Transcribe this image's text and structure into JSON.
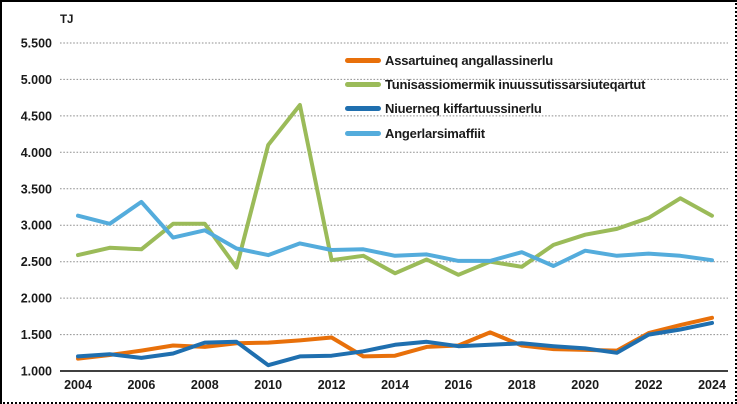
{
  "unit_label": "TJ",
  "chart_data": {
    "type": "line",
    "title": "",
    "ylabel": "TJ",
    "xlabel": "",
    "ylim": [
      1000,
      5500
    ],
    "ytick_step": 500,
    "ytick_labels": [
      "1.000",
      "1.500",
      "2.000",
      "2.500",
      "3.000",
      "3.500",
      "4.000",
      "4.500",
      "5.000",
      "5.500"
    ],
    "x": [
      2004,
      2005,
      2006,
      2007,
      2008,
      2009,
      2010,
      2011,
      2012,
      2013,
      2014,
      2015,
      2016,
      2017,
      2018,
      2019,
      2020,
      2021,
      2022,
      2023,
      2024
    ],
    "xtick_labels": [
      "2004",
      "2006",
      "2008",
      "2010",
      "2012",
      "2014",
      "2016",
      "2018",
      "2020",
      "2022",
      "2024"
    ],
    "grid": "horizontal-dotted",
    "legend_position": "upper-center",
    "series": [
      {
        "id": "assartuineq",
        "name": "Assartuineq angallassinerlu",
        "color": "#E8700A",
        "values": [
          1170,
          1220,
          1280,
          1350,
          1330,
          1380,
          1390,
          1420,
          1460,
          1200,
          1210,
          1330,
          1350,
          1530,
          1350,
          1300,
          1290,
          1280,
          1520,
          1630,
          1730
        ]
      },
      {
        "id": "tunisassiomermik",
        "name": "Tunisassiomermik inuussutissarsiuteqartut",
        "color": "#9BBB59",
        "values": [
          2590,
          2690,
          2670,
          3020,
          3020,
          2420,
          4100,
          4650,
          2520,
          2580,
          2340,
          2530,
          2320,
          2500,
          2430,
          2730,
          2870,
          2950,
          3100,
          3370,
          3130
        ]
      },
      {
        "id": "niuerneq",
        "name": "Niuerneq kiffartuussinerlu",
        "color": "#1F6FAF",
        "values": [
          1200,
          1230,
          1180,
          1240,
          1390,
          1400,
          1080,
          1200,
          1210,
          1270,
          1360,
          1400,
          1340,
          1360,
          1380,
          1340,
          1310,
          1250,
          1500,
          1570,
          1660
        ]
      },
      {
        "id": "angerlarsimaffiit",
        "name": "Angerlarsimaffiit",
        "color": "#54ACDC",
        "values": [
          3130,
          3020,
          3320,
          2830,
          2930,
          2680,
          2590,
          2750,
          2660,
          2670,
          2580,
          2600,
          2510,
          2510,
          2630,
          2440,
          2650,
          2580,
          2610,
          2580,
          2520
        ]
      }
    ],
    "colors": {
      "gridline": "#8f8f8f",
      "axis": "#000000",
      "text": "#1a1a1a"
    }
  }
}
